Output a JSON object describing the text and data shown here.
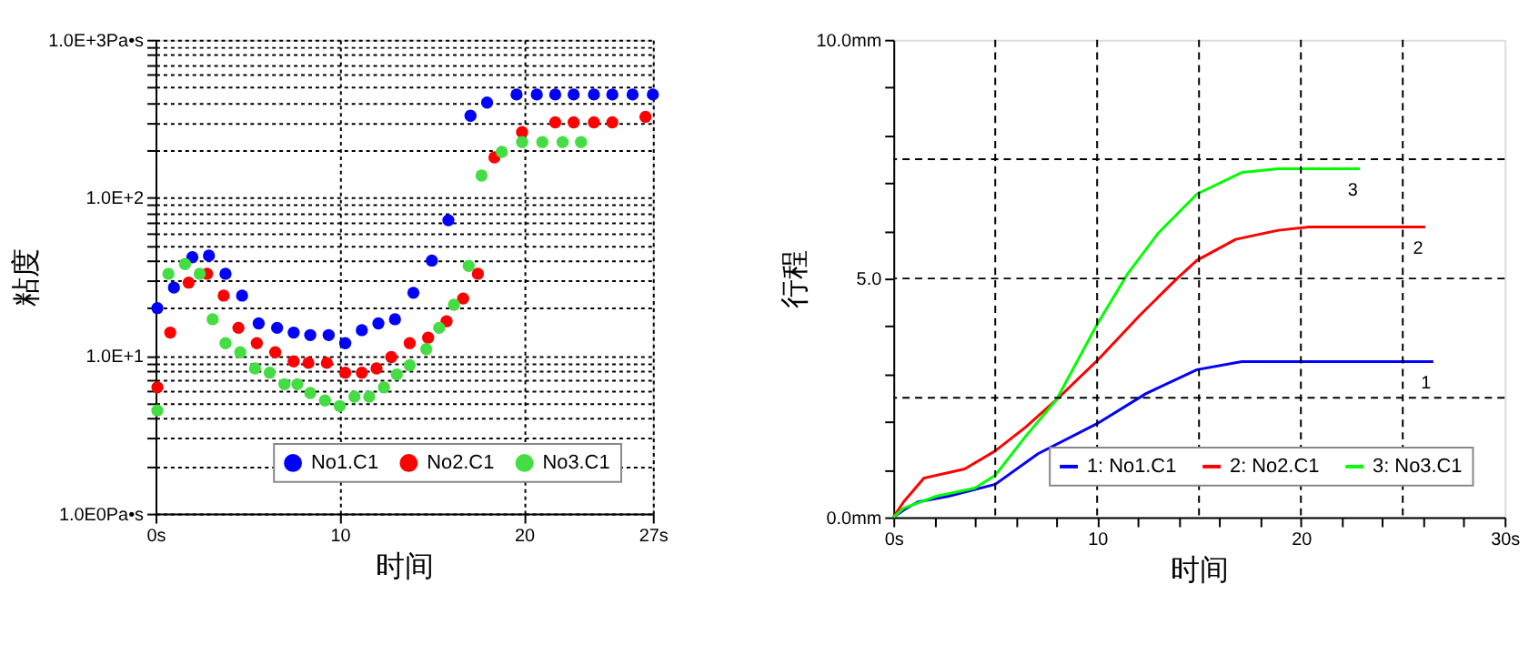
{
  "chart_data": [
    {
      "type": "scatter",
      "xlabel": "时间",
      "ylabel": "粘度",
      "log": "y",
      "grid": true,
      "legend": "bottom right",
      "marker": "circle",
      "xlim": [
        0,
        27
      ],
      "xticks": [
        {
          "value": 0,
          "label": "0s"
        },
        10,
        20,
        {
          "value": 27,
          "label": "27s"
        }
      ],
      "ylim": [
        1,
        1000
      ],
      "yticks": [
        {
          "value": 1,
          "label": "1.0E0Pa•s"
        },
        {
          "value": 2,
          "label": null
        },
        {
          "value": 3,
          "label": null
        },
        {
          "value": 4,
          "label": null
        },
        {
          "value": 5,
          "label": null
        },
        {
          "value": 6,
          "label": null
        },
        {
          "value": 7,
          "label": null
        },
        {
          "value": 8,
          "label": null
        },
        {
          "value": 9,
          "label": null
        },
        {
          "value": 10,
          "label": "1.0E+1"
        },
        {
          "value": 20,
          "label": null
        },
        {
          "value": 30,
          "label": null
        },
        {
          "value": 40,
          "label": null
        },
        {
          "value": 50,
          "label": null
        },
        {
          "value": 60,
          "label": null
        },
        {
          "value": 70,
          "label": null
        },
        {
          "value": 80,
          "label": null
        },
        {
          "value": 90,
          "label": null
        },
        {
          "value": 100,
          "label": "1.0E+2"
        },
        {
          "value": 200,
          "label": null
        },
        {
          "value": 300,
          "label": null
        },
        {
          "value": 400,
          "label": null
        },
        {
          "value": 500,
          "label": null
        },
        {
          "value": 600,
          "label": null
        },
        {
          "value": 700,
          "label": null
        },
        {
          "value": 800,
          "label": null
        },
        {
          "value": 900,
          "label": null
        },
        {
          "value": 1000,
          "label": "1.0E+3Pa•s"
        }
      ],
      "series": [
        {
          "name": "No1.C1",
          "color": "#0000ff",
          "x": [
            0.1,
            1.0,
            2.0,
            2.9,
            3.8,
            4.7,
            5.6,
            6.6,
            7.5,
            8.4,
            9.4,
            10.3,
            11.2,
            12.1,
            13.0,
            14.0,
            15.0,
            15.9,
            17.1,
            18.0,
            19.6,
            20.7,
            21.7,
            22.7,
            23.8,
            24.8,
            25.9,
            27.0
          ],
          "values": [
            20,
            27,
            42,
            43,
            33,
            24,
            16,
            15,
            14,
            13.5,
            13.5,
            12,
            14.5,
            16,
            17,
            25,
            40,
            72,
            330,
            400,
            450,
            450,
            450,
            450,
            450,
            450,
            450,
            450
          ]
        },
        {
          "name": "No2.C1",
          "color": "#ff0000",
          "x": [
            0.1,
            0.8,
            1.8,
            2.8,
            3.7,
            4.5,
            5.5,
            6.5,
            7.5,
            8.3,
            9.3,
            10.3,
            11.2,
            12.0,
            12.8,
            13.8,
            14.8,
            15.8,
            16.7,
            17.5,
            18.4,
            19.9,
            21.7,
            22.7,
            23.8,
            24.8,
            26.6
          ],
          "values": [
            6.3,
            14,
            29,
            33,
            24,
            15,
            12,
            10.5,
            9.2,
            9.0,
            9.0,
            7.8,
            7.8,
            8.3,
            9.8,
            12,
            13,
            16.5,
            23,
            33,
            180,
            260,
            300,
            300,
            300,
            300,
            325
          ]
        },
        {
          "name": "No3.C1",
          "color": "#44dd44",
          "x": [
            0.1,
            0.7,
            1.6,
            2.4,
            3.1,
            3.8,
            4.6,
            5.4,
            6.2,
            7.0,
            7.7,
            8.4,
            9.2,
            10.0,
            10.8,
            11.6,
            12.4,
            13.1,
            13.8,
            14.7,
            15.4,
            16.2,
            17.0,
            17.7,
            18.8,
            19.9,
            21.0,
            22.1,
            23.1
          ],
          "values": [
            4.5,
            33,
            38,
            33,
            17,
            12,
            10.5,
            8.3,
            7.8,
            6.6,
            6.6,
            5.8,
            5.2,
            4.8,
            5.5,
            5.5,
            6.3,
            7.6,
            8.7,
            11,
            15,
            21,
            37,
            138,
            195,
            225,
            225,
            225,
            225
          ]
        }
      ]
    },
    {
      "type": "line",
      "xlabel": "时间",
      "ylabel": "行程",
      "grid": false,
      "legend": "bottom right",
      "line_style": "solid",
      "xlim": [
        0,
        30
      ],
      "xticks": [
        {
          "value": 0,
          "label": "0s"
        },
        {
          "value": 2,
          "label": null
        },
        {
          "value": 4,
          "label": null
        },
        {
          "value": 6,
          "label": null
        },
        {
          "value": 8,
          "label": null
        },
        10,
        {
          "value": 12,
          "label": null
        },
        {
          "value": 14,
          "label": null
        },
        {
          "value": 16,
          "label": null
        },
        {
          "value": 18,
          "label": null
        },
        20,
        {
          "value": 22,
          "label": null
        },
        {
          "value": 24,
          "label": null
        },
        {
          "value": 26,
          "label": null
        },
        {
          "value": 28,
          "label": null
        },
        {
          "value": 30,
          "label": "30s"
        }
      ],
      "ylim": [
        0,
        10
      ],
      "yticks": [
        {
          "value": 0,
          "label": "0.0mm"
        },
        {
          "value": 1,
          "label": null
        },
        {
          "value": 2,
          "label": null
        },
        {
          "value": 3,
          "label": null
        },
        {
          "value": 4,
          "label": null
        },
        {
          "value": 5,
          "label": "5.0"
        },
        {
          "value": 6,
          "label": null
        },
        {
          "value": 7,
          "label": null
        },
        {
          "value": 8,
          "label": null
        },
        {
          "value": 9,
          "label": null
        },
        {
          "value": 10,
          "label": "10.0mm"
        }
      ],
      "ref_lines": [
        {
          "axis": "x",
          "value": 5,
          "color": "#000000",
          "line_style": "dashed"
        },
        {
          "axis": "x",
          "value": 10,
          "color": "#000000",
          "line_style": "dashed"
        },
        {
          "axis": "x",
          "value": 15,
          "color": "#000000",
          "line_style": "dashed"
        },
        {
          "axis": "x",
          "value": 20,
          "color": "#000000",
          "line_style": "dashed"
        },
        {
          "axis": "x",
          "value": 25,
          "color": "#000000",
          "line_style": "dashed"
        },
        {
          "axis": "y",
          "value": 2.5,
          "color": "#000000",
          "line_style": "dashed"
        },
        {
          "axis": "y",
          "value": 5,
          "color": "#000000",
          "line_style": "dashed"
        },
        {
          "axis": "y",
          "value": 7.5,
          "color": "#000000",
          "line_style": "dashed"
        }
      ],
      "annotations": [
        {
          "text": "1",
          "x": 26.5,
          "y": 3.26
        },
        {
          "text": "2",
          "x": 26.1,
          "y": 6.08
        },
        {
          "text": "3",
          "x": 22.9,
          "y": 7.3
        }
      ],
      "series": [
        {
          "name": "1: No1.C1",
          "color": "#0000ff",
          "x": [
            0,
            0.5,
            1.2,
            2.7,
            5,
            7.1,
            10,
            12.4,
            14.9,
            17.1,
            26.5
          ],
          "values": [
            0,
            0.15,
            0.32,
            0.44,
            0.69,
            1.33,
            1.96,
            2.59,
            3.09,
            3.26,
            3.26
          ]
        },
        {
          "name": "2: No2.C1",
          "color": "#ff0000",
          "x": [
            0,
            0.5,
            1.5,
            3.5,
            5,
            6.5,
            8,
            10,
            12.1,
            13.9,
            14.9,
            16.8,
            18.9,
            20.4,
            26.1
          ],
          "values": [
            0,
            0.32,
            0.82,
            1.01,
            1.39,
            1.89,
            2.46,
            3.28,
            4.23,
            4.99,
            5.38,
            5.82,
            6.01,
            6.08,
            6.08
          ]
        },
        {
          "name": "3: No3.C1",
          "color": "#00ff00",
          "x": [
            0,
            0.5,
            2.1,
            4,
            5,
            6.5,
            8,
            10,
            11.5,
            13,
            14.9,
            17.1,
            18.9,
            22.9
          ],
          "values": [
            0,
            0.19,
            0.44,
            0.61,
            0.88,
            1.7,
            2.46,
            4.04,
            5.1,
            5.95,
            6.77,
            7.22,
            7.3,
            7.3
          ]
        }
      ]
    }
  ]
}
